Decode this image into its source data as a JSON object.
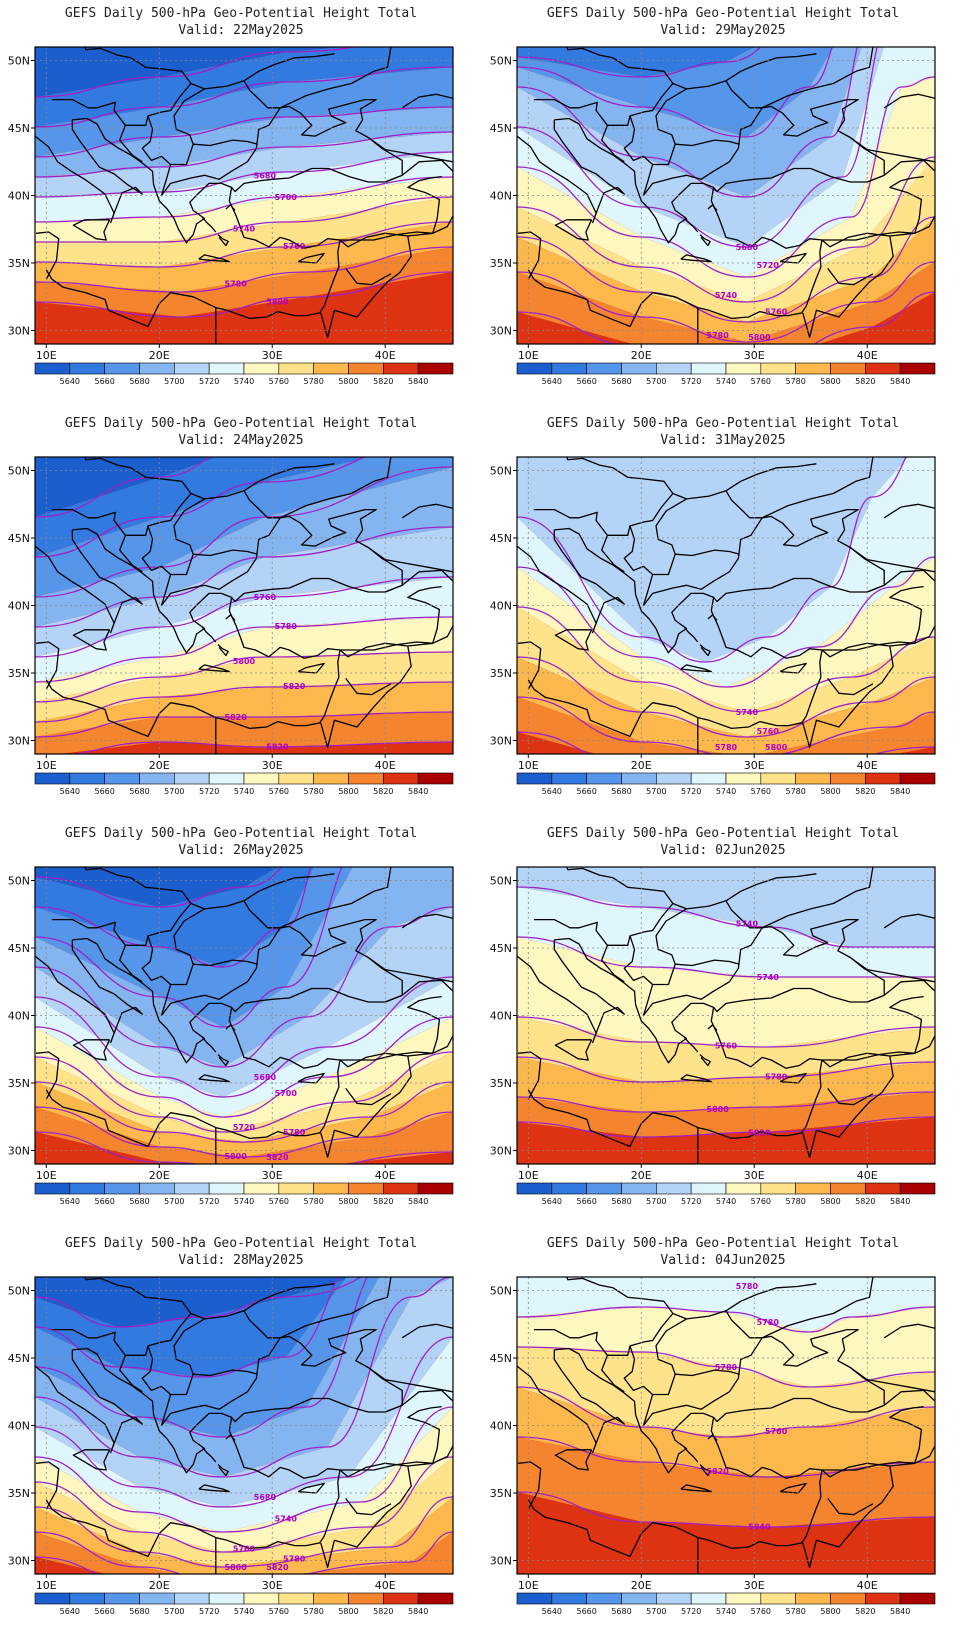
{
  "title_line1": "GEFS Daily 500-hPa Geo-Potential Height Total",
  "lat_labels": [
    "50N",
    "45N",
    "40N",
    "35N",
    "30N"
  ],
  "lon_labels": [
    "10E",
    "20E",
    "30E",
    "40E"
  ],
  "colorbar": {
    "levels": [
      "5640",
      "5660",
      "5680",
      "5700",
      "5720",
      "5740",
      "5760",
      "5780",
      "5800",
      "5820",
      "5840"
    ],
    "colors": [
      "#1b5fcf",
      "#3279e0",
      "#5596ea",
      "#84b5f1",
      "#b3d4f6",
      "#dff6fd",
      "#fff7c0",
      "#ffe38a",
      "#fcb84d",
      "#f5842f",
      "#de3312",
      "#a90000"
    ]
  },
  "contour_color": "#a020c8",
  "panels": [
    {
      "valid": "Valid: 22May2025",
      "labels": [
        "5680",
        "5700",
        "5740",
        "5760",
        "5780",
        "5800"
      ]
    },
    {
      "valid": "Valid: 29May2025",
      "labels": [
        "5680",
        "5720",
        "5740",
        "5760",
        "5780",
        "5800"
      ]
    },
    {
      "valid": "Valid: 24May2025",
      "labels": [
        "5760",
        "5780",
        "5800",
        "5820",
        "5820",
        "5820"
      ]
    },
    {
      "valid": "Valid: 31May2025",
      "labels": [
        "5740",
        "5760",
        "5780",
        "5800"
      ]
    },
    {
      "valid": "Valid: 26May2025",
      "labels": [
        "5680",
        "5700",
        "5720",
        "5780",
        "5800",
        "5820"
      ]
    },
    {
      "valid": "Valid: 02Jun2025",
      "labels": [
        "5740",
        "5740",
        "5760",
        "5780",
        "5800",
        "5820"
      ]
    },
    {
      "valid": "Valid: 28May2025",
      "labels": [
        "5680",
        "5740",
        "5760",
        "5780",
        "5800",
        "5820"
      ]
    },
    {
      "valid": "Valid: 04Jun2025",
      "labels": [
        "5780",
        "5780",
        "5780",
        "5760",
        "5820",
        "5840"
      ]
    }
  ]
}
